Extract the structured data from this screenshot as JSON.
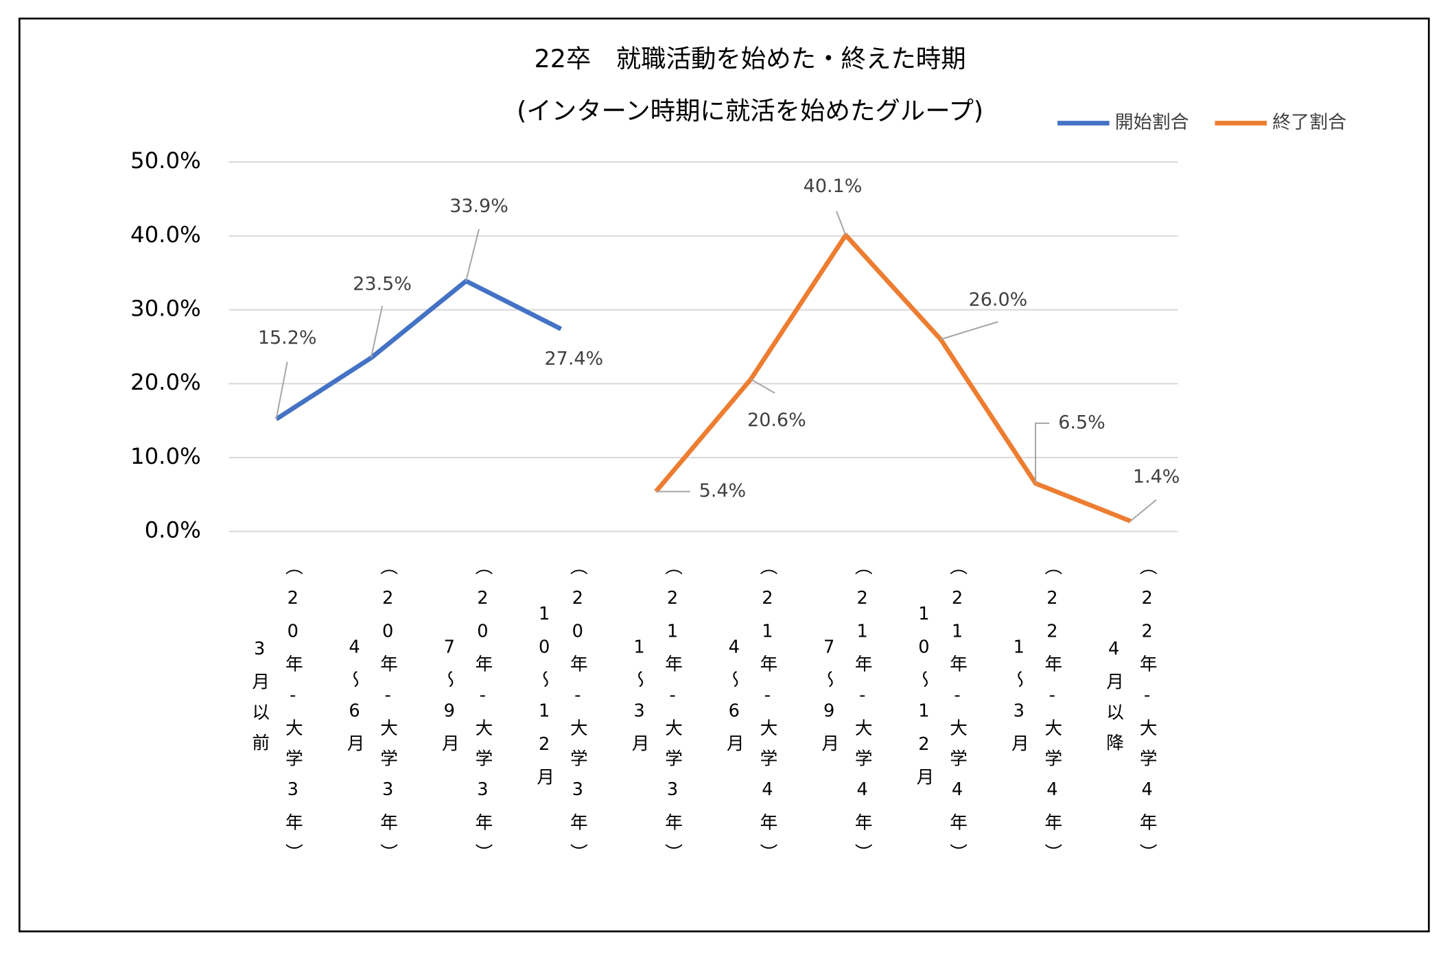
{
  "chart_data": {
    "type": "line",
    "title": "22卒　就職活動を始めた・終えた時期",
    "subtitle": "(インターン時期に就活を始めたグループ)",
    "categories": [
      "3月以前\n（20年-大学3年）",
      "4～6月\n（20年-大学3年）",
      "7～9月\n（20年-大学3年）",
      "10～12月\n（20年-大学3年）",
      "1～3月\n（21年-大学3年）",
      "4～6月\n（21年-大学4年）",
      "7～9月\n（21年-大学4年）",
      "10～12月\n（21年-大学4年）",
      "1～3月\n（22年-大学4年）",
      "4月以降\n（22年-大学4年）"
    ],
    "series": [
      {
        "name": "開始割合",
        "color": "#4472c4",
        "values": [
          15.2,
          23.5,
          33.9,
          27.4,
          null,
          null,
          null,
          null,
          null,
          null
        ],
        "value_labels": [
          "15.2%",
          "23.5%",
          "33.9%",
          "27.4%",
          null,
          null,
          null,
          null,
          null,
          null
        ]
      },
      {
        "name": "終了割合",
        "color": "#ed7d31",
        "values": [
          null,
          null,
          null,
          null,
          5.4,
          20.6,
          40.1,
          26.0,
          6.5,
          1.4
        ],
        "value_labels": [
          null,
          null,
          null,
          null,
          "5.4%",
          "20.6%",
          "40.1%",
          "26.0%",
          "6.5%",
          "1.4%"
        ]
      }
    ],
    "ylim": [
      0,
      50
    ],
    "yticks": [
      {
        "value": 0,
        "label": "0.0%"
      },
      {
        "value": 10,
        "label": "10.0%"
      },
      {
        "value": 20,
        "label": "20.0%"
      },
      {
        "value": 30,
        "label": "30.0%"
      },
      {
        "value": 40,
        "label": "40.0%"
      },
      {
        "value": 50,
        "label": "50.0%"
      }
    ],
    "grid": true,
    "legend": "top-right"
  }
}
